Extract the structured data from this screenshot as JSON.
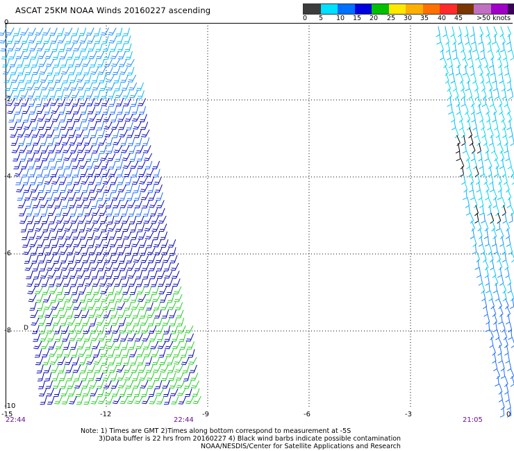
{
  "title": "ASCAT 25KM NOAA Winds 20160227 ascending",
  "legend": {
    "colors": [
      "#404040",
      "#8a8a8a",
      "#00e0ff",
      "#00a8ff",
      "#0000ff",
      "#00b000",
      "#00e000",
      "#ffff00",
      "#ffbf00",
      "#ff7f00",
      "#ff2000",
      "#e00000",
      "#5a2a00",
      "#b07a5a",
      "#b000b0",
      "#e000e0",
      "#6a00b0",
      "#200060"
    ],
    "labels": [
      "0",
      "5",
      "10",
      "15",
      "20",
      "25",
      "30",
      "35",
      "40",
      "45",
      ">50 knots"
    ]
  },
  "axes": {
    "y_ticks": [
      "0",
      "-2",
      "-4",
      "-6",
      "-8",
      "-10"
    ],
    "x_ticks": [
      "-15",
      "-12",
      "-9",
      "-6",
      "-3",
      "0"
    ]
  },
  "timestamps": {
    "left": "22:44",
    "middle": "22:44",
    "right": "21:05"
  },
  "side_mark": "D",
  "notes": {
    "line1": "Note: 1) Times are GMT 2)Times along bottom correspond to measurement at -5S",
    "line2": "3)Data buffer is 22 hrs from 20160227 4) Black wind barbs indicate possible contamination",
    "line3": "NOAA/NESDIS/Center for Satellite Applications and Research"
  },
  "swaths": {
    "west": {
      "wind_direction": "from the northeast",
      "speed_range_knots": [
        5,
        20
      ]
    },
    "east": {
      "wind_direction": "from the southeast",
      "speed_range_knots": [
        5,
        15
      ]
    }
  }
}
